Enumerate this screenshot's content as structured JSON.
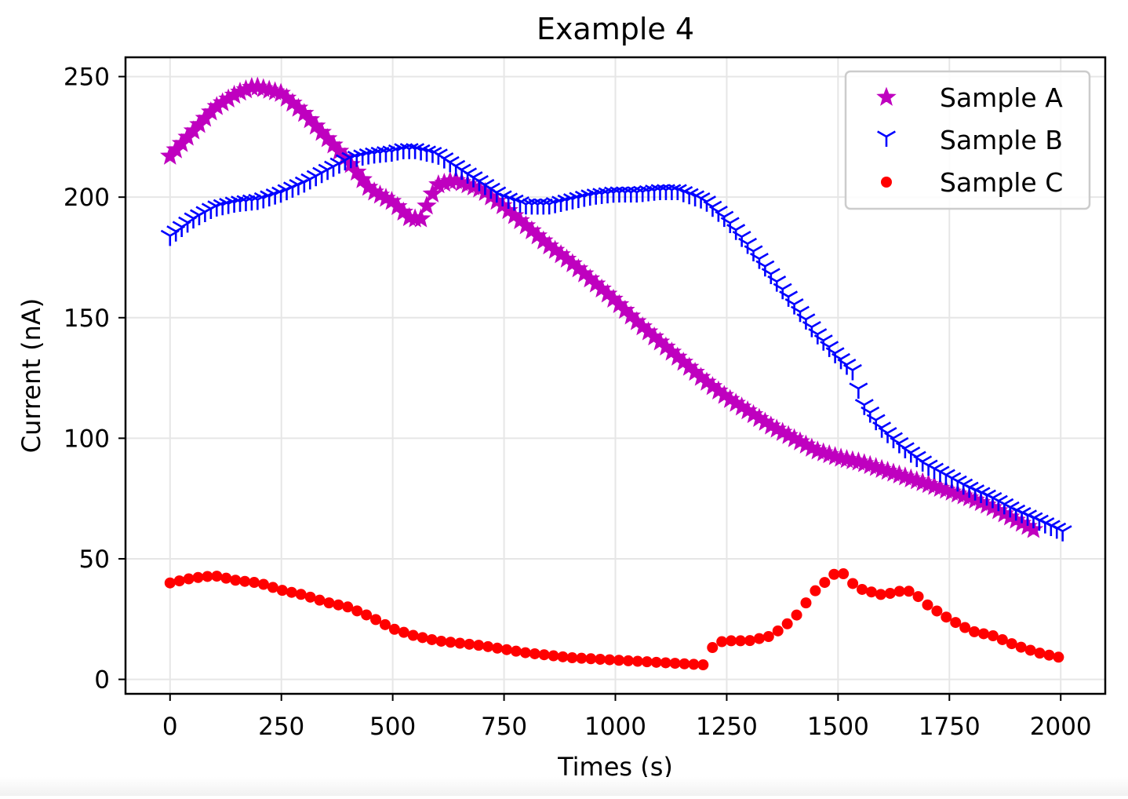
{
  "chart_data": {
    "type": "scatter",
    "title": "Example 4",
    "xlabel": "Times (s)",
    "ylabel": "Current (nA)",
    "xlim": [
      -100,
      2100
    ],
    "ylim": [
      -6,
      258
    ],
    "xticks": [
      0,
      250,
      500,
      750,
      1000,
      1250,
      1500,
      1750,
      2000
    ],
    "yticks": [
      0,
      50,
      100,
      150,
      200,
      250
    ],
    "xtick_labels": [
      "0",
      "250",
      "500",
      "750",
      "1000",
      "1250",
      "1500",
      "1750",
      "2000"
    ],
    "ytick_labels": [
      "0",
      "50",
      "100",
      "150",
      "200",
      "250"
    ],
    "grid": true,
    "legend_position": "top-right",
    "series": [
      {
        "name": "Sample A",
        "marker": "star",
        "color": "#bf00bf",
        "x_start": 0,
        "x_step": 13.1,
        "knots_x": [
          0,
          50,
          100,
          150,
          190,
          250,
          300,
          350,
          400,
          450,
          500,
          540,
          565,
          580,
          600,
          640,
          700,
          750,
          800,
          850,
          900,
          950,
          1000,
          1050,
          1100,
          1150,
          1200,
          1250,
          1300,
          1350,
          1400,
          1450,
          1500,
          1550,
          1600,
          1650,
          1700,
          1750,
          1800,
          1850,
          1900,
          1940
        ],
        "knots_y": [
          217,
          227,
          237,
          243,
          246,
          243,
          235,
          225,
          215,
          203,
          198,
          191,
          191,
          198,
          205,
          207,
          203,
          196,
          188,
          180,
          173,
          165,
          157,
          148,
          140,
          132,
          124,
          117,
          111,
          105,
          100,
          95,
          92,
          90,
          87,
          84,
          81,
          78,
          75,
          71,
          66,
          62
        ]
      },
      {
        "name": "Sample B",
        "marker": "tri_down",
        "color": "#0000ff",
        "x_start": 0,
        "x_step": 13.1,
        "knots_x": [
          0,
          50,
          100,
          150,
          200,
          250,
          300,
          350,
          400,
          450,
          500,
          525,
          550,
          600,
          650,
          700,
          750,
          800,
          850,
          900,
          950,
          1000,
          1050,
          1100,
          1140,
          1200,
          1250,
          1300,
          1350,
          1400,
          1450,
          1500,
          1540,
          1550,
          1600,
          1650,
          1700,
          1750,
          1800,
          1850,
          1900,
          1950,
          2010
        ],
        "knots_y": [
          184,
          191,
          196,
          198,
          199,
          202,
          206,
          211,
          216,
          218,
          219,
          220,
          220,
          218,
          212,
          206,
          200,
          197,
          197,
          199,
          201,
          202,
          202,
          203,
          203,
          199,
          191,
          180,
          168,
          156,
          144,
          134,
          127,
          116,
          104,
          96,
          89,
          84,
          79,
          75,
          70,
          66,
          61
        ]
      },
      {
        "name": "Sample C",
        "marker": "circle",
        "color": "#ff0000",
        "x_start": 0,
        "x_step": 21,
        "knots_x": [
          0,
          50,
          100,
          150,
          200,
          250,
          300,
          350,
          400,
          450,
          500,
          550,
          600,
          700,
          800,
          900,
          1000,
          1100,
          1200,
          1210,
          1220,
          1250,
          1300,
          1350,
          1400,
          1450,
          1500,
          1520,
          1540,
          1600,
          1650,
          1670,
          1700,
          1750,
          1800,
          1850,
          1900,
          1950,
          2000
        ],
        "knots_y": [
          40,
          42,
          43,
          41,
          40,
          37,
          35,
          32,
          30,
          26,
          21,
          18,
          16,
          14,
          11,
          9,
          8,
          7,
          6,
          6,
          15,
          16,
          16,
          18,
          25,
          37,
          45,
          43,
          38,
          35,
          37,
          36,
          31,
          25,
          20,
          18,
          14,
          11,
          9
        ]
      }
    ]
  }
}
